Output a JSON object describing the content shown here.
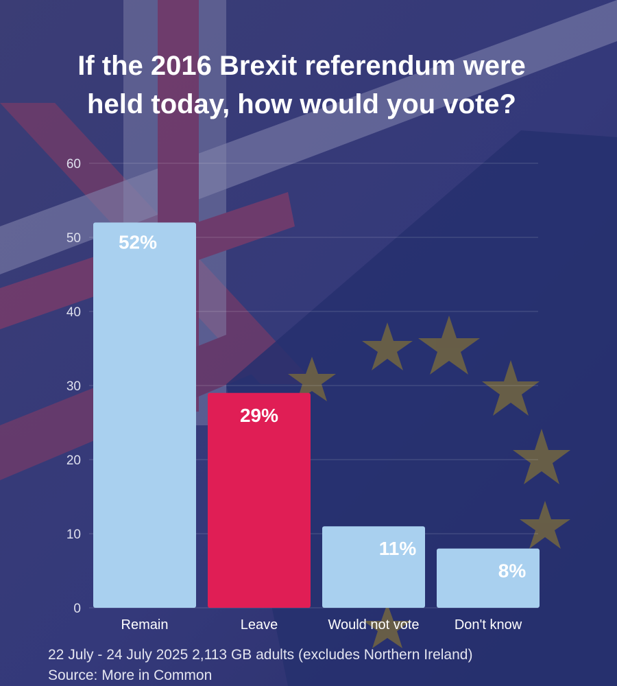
{
  "title_line1": "If the 2016 Brexit referendum were",
  "title_line2": "held today, how would you vote?",
  "footer_line1": "22 July - 24 July 2025 2,113 GB adults (excludes Northern Ireland)",
  "footer_line2": "Source: More in Common",
  "colors": {
    "background": "#3e3f73",
    "remain": "#a9d0ef",
    "leave": "#e01e55",
    "other": "#a9d0ef",
    "text": "#ffffff",
    "tick": "#dfe0ee"
  },
  "chart_data": {
    "type": "bar",
    "categories": [
      "Remain",
      "Leave",
      "Would not vote",
      "Don't know"
    ],
    "values": [
      52,
      29,
      11,
      8
    ],
    "data_labels": [
      "52%",
      "29%",
      "11%",
      "8%"
    ],
    "bar_colors": [
      "#a9d0ef",
      "#e01e55",
      "#a9d0ef",
      "#a9d0ef"
    ],
    "title": "If the 2016 Brexit referendum were held today, how would you vote?",
    "xlabel": "",
    "ylabel": "",
    "ylim": [
      0,
      60
    ],
    "yticks": [
      0,
      10,
      20,
      30,
      40,
      50,
      60
    ],
    "grid": true,
    "legend": "none"
  }
}
